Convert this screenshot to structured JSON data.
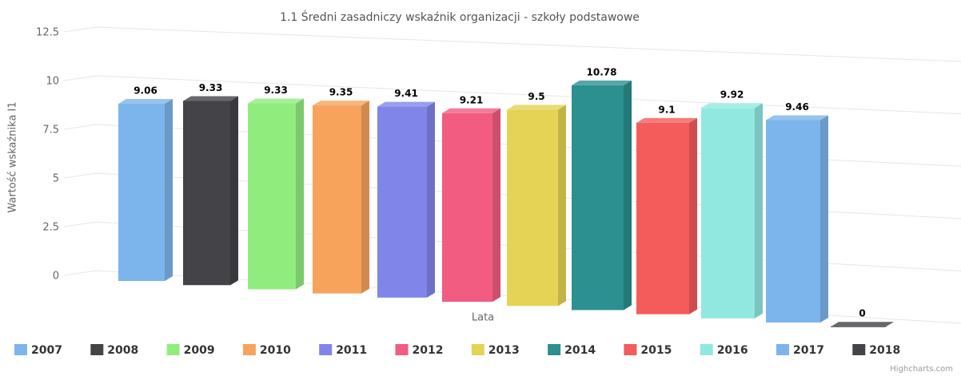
{
  "chart_data": {
    "type": "bar3d",
    "title": "1.1 Średni zasadniczy wskaźnik organizacji - szkoły podstawowe",
    "xlabel": "Lata",
    "ylabel": "Wartość wskaźnika I1",
    "credits": "Highcharts.com",
    "categories": [
      null
    ],
    "ylim": [
      0,
      12.5
    ],
    "yticks": [
      0,
      2.5,
      5,
      7.5,
      10,
      12.5
    ],
    "grid": true,
    "legend": "bottom",
    "series": [
      {
        "name": "2007",
        "color": "#7cb5ec",
        "values": [
          9.06
        ]
      },
      {
        "name": "2008",
        "color": "#434348",
        "values": [
          9.33
        ]
      },
      {
        "name": "2009",
        "color": "#90ed7d",
        "values": [
          9.33
        ]
      },
      {
        "name": "2010",
        "color": "#f7a35c",
        "values": [
          9.35
        ]
      },
      {
        "name": "2011",
        "color": "#8085e9",
        "values": [
          9.41
        ]
      },
      {
        "name": "2012",
        "color": "#f15c80",
        "values": [
          9.21
        ]
      },
      {
        "name": "2013",
        "color": "#e4d354",
        "values": [
          9.5
        ]
      },
      {
        "name": "2014",
        "color": "#2b908f",
        "values": [
          10.78
        ]
      },
      {
        "name": "2015",
        "color": "#f45b5b",
        "values": [
          9.1
        ]
      },
      {
        "name": "2016",
        "color": "#91e8e1",
        "values": [
          9.92
        ]
      },
      {
        "name": "2017",
        "color": "#7cb5ec",
        "values": [
          9.46
        ]
      },
      {
        "name": "2018",
        "color": "#434348",
        "values": [
          0
        ]
      }
    ]
  }
}
